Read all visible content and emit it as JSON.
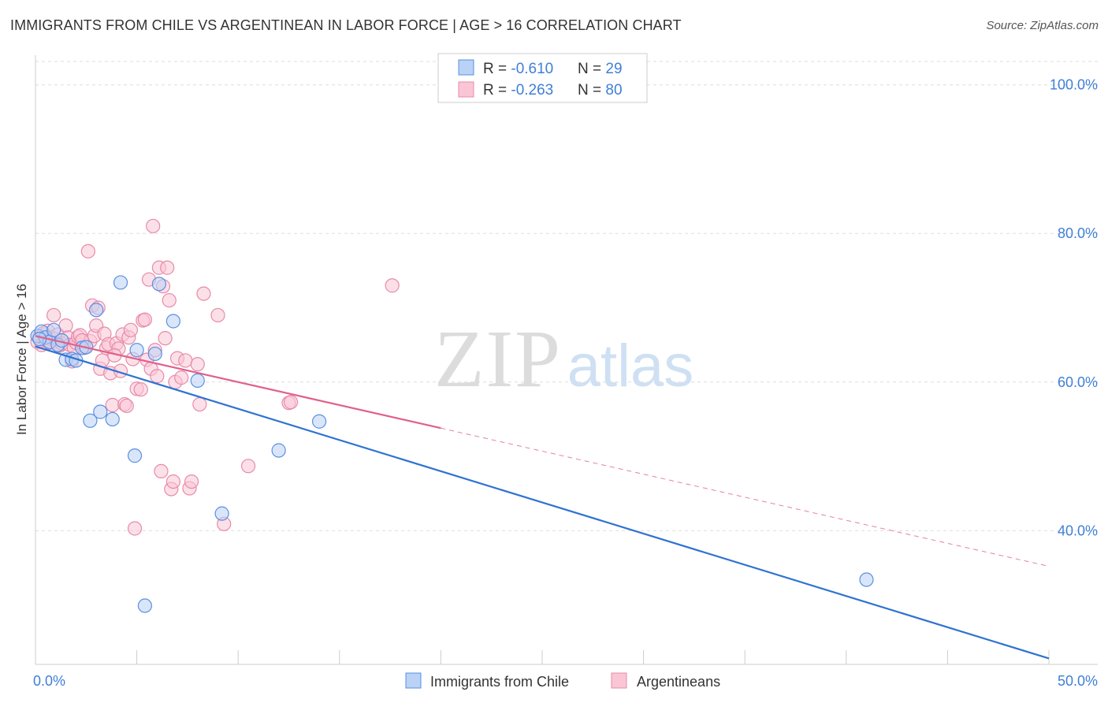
{
  "title": "IMMIGRANTS FROM CHILE VS ARGENTINEAN IN LABOR FORCE | AGE > 16 CORRELATION CHART",
  "source": "Source: ZipAtlas.com",
  "watermark": {
    "zip": "ZIP",
    "atlas": "atlas"
  },
  "colors": {
    "blue": "#5b8fe0",
    "blue_fill": "#a9c7f2",
    "blue_line": "#2e72d2",
    "pink": "#e88aab",
    "pink_fill": "#f7b8cc",
    "pink_line": "#e0608a",
    "axis_text": "#3f7fd6",
    "grid": "#dedede"
  },
  "legend": {
    "rows": [
      {
        "r_label": "R = ",
        "r_value": "-0.610",
        "n_label": "N = ",
        "n_value": "29"
      },
      {
        "r_label": "R = ",
        "r_value": "-0.263",
        "n_label": "N = ",
        "n_value": "80"
      }
    ]
  },
  "chart_data": {
    "type": "scatter",
    "title": "IMMIGRANTS FROM CHILE VS ARGENTINEAN IN LABOR FORCE | AGE > 16 CORRELATION CHART",
    "xlabel": "",
    "ylabel": "In Labor Force | Age > 16",
    "xlim": [
      0,
      50
    ],
    "ylim": [
      22,
      104
    ],
    "x_tick_labels": [
      "0.0%",
      "50.0%"
    ],
    "y_ticks": [
      {
        "value": 100,
        "label": "100.0%"
      },
      {
        "value": 80,
        "label": "80.0%"
      },
      {
        "value": 60,
        "label": "60.0%"
      },
      {
        "value": 40,
        "label": "40.0%"
      }
    ],
    "series": [
      {
        "name": "Immigrants from Chile",
        "color": "blue",
        "points": [
          [
            0.1,
            66.2
          ],
          [
            0.3,
            66.8
          ],
          [
            0.5,
            66.0
          ],
          [
            0.7,
            65.4
          ],
          [
            0.9,
            67.0
          ],
          [
            1.1,
            65.0
          ],
          [
            1.3,
            65.6
          ],
          [
            1.5,
            63.0
          ],
          [
            1.8,
            63.1
          ],
          [
            2.0,
            62.9
          ],
          [
            2.3,
            64.6
          ],
          [
            2.5,
            64.7
          ],
          [
            2.7,
            54.8
          ],
          [
            3.0,
            69.7
          ],
          [
            3.2,
            56.0
          ],
          [
            3.8,
            55.0
          ],
          [
            4.2,
            73.4
          ],
          [
            4.9,
            50.1
          ],
          [
            5.0,
            64.3
          ],
          [
            5.4,
            29.9
          ],
          [
            5.9,
            63.8
          ],
          [
            6.1,
            73.2
          ],
          [
            6.8,
            68.2
          ],
          [
            8.0,
            60.2
          ],
          [
            9.2,
            42.3
          ],
          [
            12.0,
            50.8
          ],
          [
            14.0,
            54.7
          ],
          [
            41.0,
            33.4
          ],
          [
            0.2,
            65.8
          ]
        ],
        "trend": {
          "x": [
            0,
            50
          ],
          "y": [
            64.8,
            22.8
          ],
          "dashed_from": null
        }
      },
      {
        "name": "Argentineans",
        "color": "pink",
        "points": [
          [
            0.1,
            65.4
          ],
          [
            0.2,
            66.1
          ],
          [
            0.3,
            65.0
          ],
          [
            0.4,
            66.6
          ],
          [
            0.5,
            65.6
          ],
          [
            0.6,
            66.9
          ],
          [
            0.7,
            65.3
          ],
          [
            0.8,
            66.0
          ],
          [
            0.9,
            69.0
          ],
          [
            1.0,
            65.8
          ],
          [
            1.1,
            66.4
          ],
          [
            1.2,
            64.9
          ],
          [
            1.3,
            65.2
          ],
          [
            1.5,
            67.6
          ],
          [
            1.6,
            66.0
          ],
          [
            1.7,
            65.0
          ],
          [
            1.8,
            62.8
          ],
          [
            1.9,
            64.6
          ],
          [
            2.0,
            65.3
          ],
          [
            2.1,
            66.1
          ],
          [
            2.2,
            66.3
          ],
          [
            2.4,
            64.6
          ],
          [
            2.6,
            77.6
          ],
          [
            2.7,
            65.5
          ],
          [
            2.8,
            70.3
          ],
          [
            2.9,
            66.2
          ],
          [
            3.0,
            67.6
          ],
          [
            3.1,
            70.0
          ],
          [
            3.2,
            61.8
          ],
          [
            3.3,
            62.9
          ],
          [
            3.4,
            66.5
          ],
          [
            3.5,
            64.6
          ],
          [
            3.6,
            65.1
          ],
          [
            3.7,
            61.2
          ],
          [
            3.8,
            56.9
          ],
          [
            4.0,
            65.2
          ],
          [
            4.1,
            64.5
          ],
          [
            4.2,
            61.5
          ],
          [
            4.3,
            66.4
          ],
          [
            4.4,
            57.0
          ],
          [
            4.5,
            56.8
          ],
          [
            4.6,
            66.0
          ],
          [
            4.7,
            67.0
          ],
          [
            4.8,
            63.1
          ],
          [
            4.9,
            40.3
          ],
          [
            5.0,
            59.1
          ],
          [
            5.2,
            59.0
          ],
          [
            5.3,
            68.3
          ],
          [
            5.5,
            63.0
          ],
          [
            5.6,
            73.8
          ],
          [
            5.7,
            61.8
          ],
          [
            5.8,
            81.0
          ],
          [
            5.9,
            64.3
          ],
          [
            6.0,
            60.8
          ],
          [
            6.1,
            75.4
          ],
          [
            6.2,
            48.0
          ],
          [
            6.3,
            72.9
          ],
          [
            6.4,
            65.9
          ],
          [
            6.5,
            75.4
          ],
          [
            6.6,
            71.0
          ],
          [
            6.7,
            45.6
          ],
          [
            6.8,
            46.6
          ],
          [
            6.9,
            60.0
          ],
          [
            7.0,
            63.2
          ],
          [
            7.2,
            60.6
          ],
          [
            7.4,
            62.9
          ],
          [
            7.6,
            45.7
          ],
          [
            7.7,
            46.6
          ],
          [
            8.0,
            62.4
          ],
          [
            8.1,
            57.0
          ],
          [
            8.3,
            71.9
          ],
          [
            9.0,
            69.0
          ],
          [
            9.3,
            40.9
          ],
          [
            10.5,
            48.7
          ],
          [
            12.5,
            57.2
          ],
          [
            12.6,
            57.3
          ],
          [
            17.6,
            73.0
          ],
          [
            5.4,
            68.4
          ],
          [
            2.3,
            65.6
          ],
          [
            3.9,
            63.6
          ]
        ],
        "trend": {
          "x": [
            0,
            50
          ],
          "y": [
            66.2,
            35.2
          ],
          "dashed_from": 20
        }
      }
    ],
    "legend_position": "bottom"
  }
}
